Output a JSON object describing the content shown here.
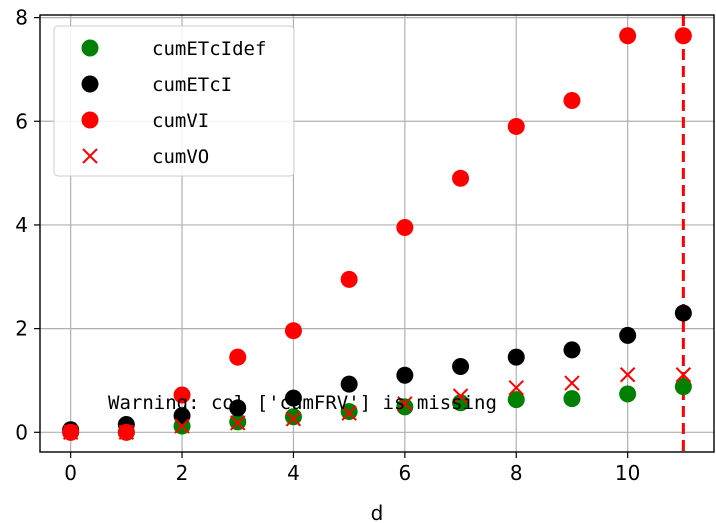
{
  "chart_data": {
    "type": "scatter",
    "title": "",
    "xlabel": "d",
    "ylabel": "",
    "xlim": [
      -0.55,
      11.55
    ],
    "ylim": [
      -0.38,
      8.05
    ],
    "xticks": [
      0,
      2,
      4,
      6,
      8,
      10
    ],
    "yticks": [
      0,
      2,
      4,
      6,
      8
    ],
    "grid": true,
    "legend_position": "upper-left",
    "x": [
      0,
      1,
      2,
      3,
      4,
      5,
      6,
      7,
      8,
      9,
      10,
      11
    ],
    "series": [
      {
        "name": "cumETcIdef",
        "marker": "circle",
        "color": "#008000",
        "values": [
          0.0,
          0.0,
          0.12,
          0.2,
          0.3,
          0.4,
          0.49,
          0.57,
          0.63,
          0.65,
          0.74,
          0.88
        ]
      },
      {
        "name": "cumETcI",
        "marker": "circle",
        "color": "#000000",
        "values": [
          0.05,
          0.15,
          0.32,
          0.47,
          0.66,
          0.93,
          1.1,
          1.27,
          1.45,
          1.59,
          1.87,
          2.3
        ]
      },
      {
        "name": "cumVI",
        "marker": "circle",
        "color": "#ff0000",
        "values": [
          0.0,
          0.0,
          0.72,
          1.45,
          1.96,
          2.95,
          3.95,
          4.9,
          5.9,
          6.4,
          7.65,
          7.65
        ]
      },
      {
        "name": "cumVO",
        "marker": "x",
        "color": "#ff0000",
        "values": [
          0.0,
          0.0,
          0.12,
          0.18,
          0.26,
          0.37,
          0.55,
          0.7,
          0.86,
          0.95,
          1.11,
          1.11
        ]
      }
    ],
    "vline": {
      "x": 11,
      "color": "#ff0000",
      "style": "dashed"
    },
    "annotation": "Warning: col ['cumFRV'] is missing"
  }
}
